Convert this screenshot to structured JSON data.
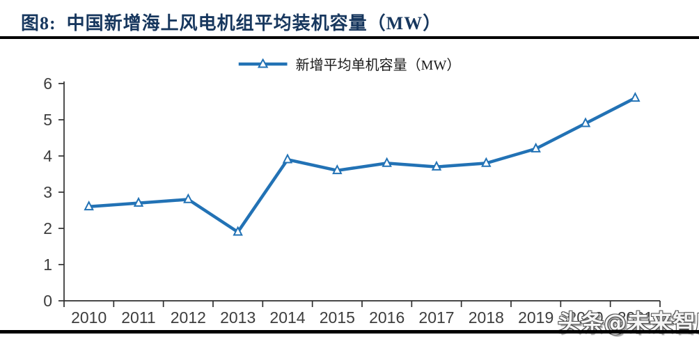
{
  "figure_header": {
    "title": "图8:  中国新增海上风电机组平均装机容量（MW）"
  },
  "legend": {
    "label": "新增平均单机容量（MW）"
  },
  "watermark": {
    "text": "头条@未来智库"
  },
  "colors": {
    "title": "#17375E",
    "line": "#2272B5",
    "axis": "#2F2F2F",
    "tick_label": "#3D3D3D",
    "rule": "#000000",
    "marker_fill": "#FFFFFF"
  },
  "chart_data": {
    "type": "line",
    "title": "图8: 中国新增海上风电机组平均装机容量（MW）",
    "categories": [
      "2010",
      "2011",
      "2012",
      "2013",
      "2014",
      "2015",
      "2016",
      "2017",
      "2018",
      "2019",
      "2020",
      "2021"
    ],
    "series": [
      {
        "name": "新增平均单机容量（MW）",
        "values": [
          2.6,
          2.7,
          2.8,
          1.9,
          3.9,
          3.6,
          3.8,
          3.7,
          3.8,
          4.2,
          4.9,
          5.6
        ]
      }
    ],
    "xlabel": "",
    "ylabel": "",
    "ylim": [
      0,
      6
    ],
    "ytick_interval": 1,
    "grid": false,
    "legend_position": "top-center",
    "marker": "open-triangle",
    "line_color": "#2272B5"
  }
}
